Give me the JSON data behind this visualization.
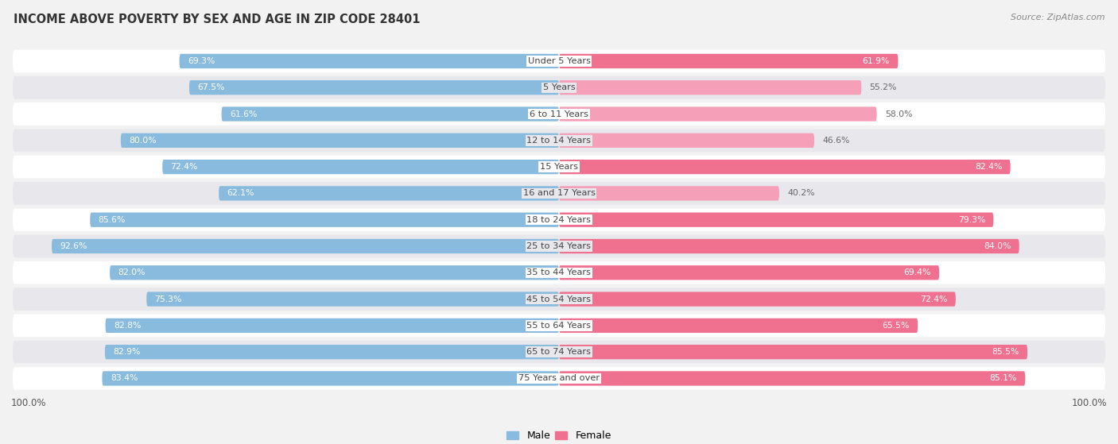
{
  "title": "INCOME ABOVE POVERTY BY SEX AND AGE IN ZIP CODE 28401",
  "source": "Source: ZipAtlas.com",
  "categories": [
    "Under 5 Years",
    "5 Years",
    "6 to 11 Years",
    "12 to 14 Years",
    "15 Years",
    "16 and 17 Years",
    "18 to 24 Years",
    "25 to 34 Years",
    "35 to 44 Years",
    "45 to 54 Years",
    "55 to 64 Years",
    "65 to 74 Years",
    "75 Years and over"
  ],
  "male_values": [
    69.3,
    67.5,
    61.6,
    80.0,
    72.4,
    62.1,
    85.6,
    92.6,
    82.0,
    75.3,
    82.8,
    82.9,
    83.4
  ],
  "female_values": [
    61.9,
    55.2,
    58.0,
    46.6,
    82.4,
    40.2,
    79.3,
    84.0,
    69.4,
    72.4,
    65.5,
    85.5,
    85.1
  ],
  "male_color": "#88BBDD",
  "female_color": "#F07090",
  "female_light_color": "#F5A0B8",
  "background_color": "#f2f2f2",
  "row_color_light": "#ffffff",
  "row_color_dark": "#e8e8ec",
  "max_value": 100.0,
  "legend_male": "Male",
  "legend_female": "Female"
}
